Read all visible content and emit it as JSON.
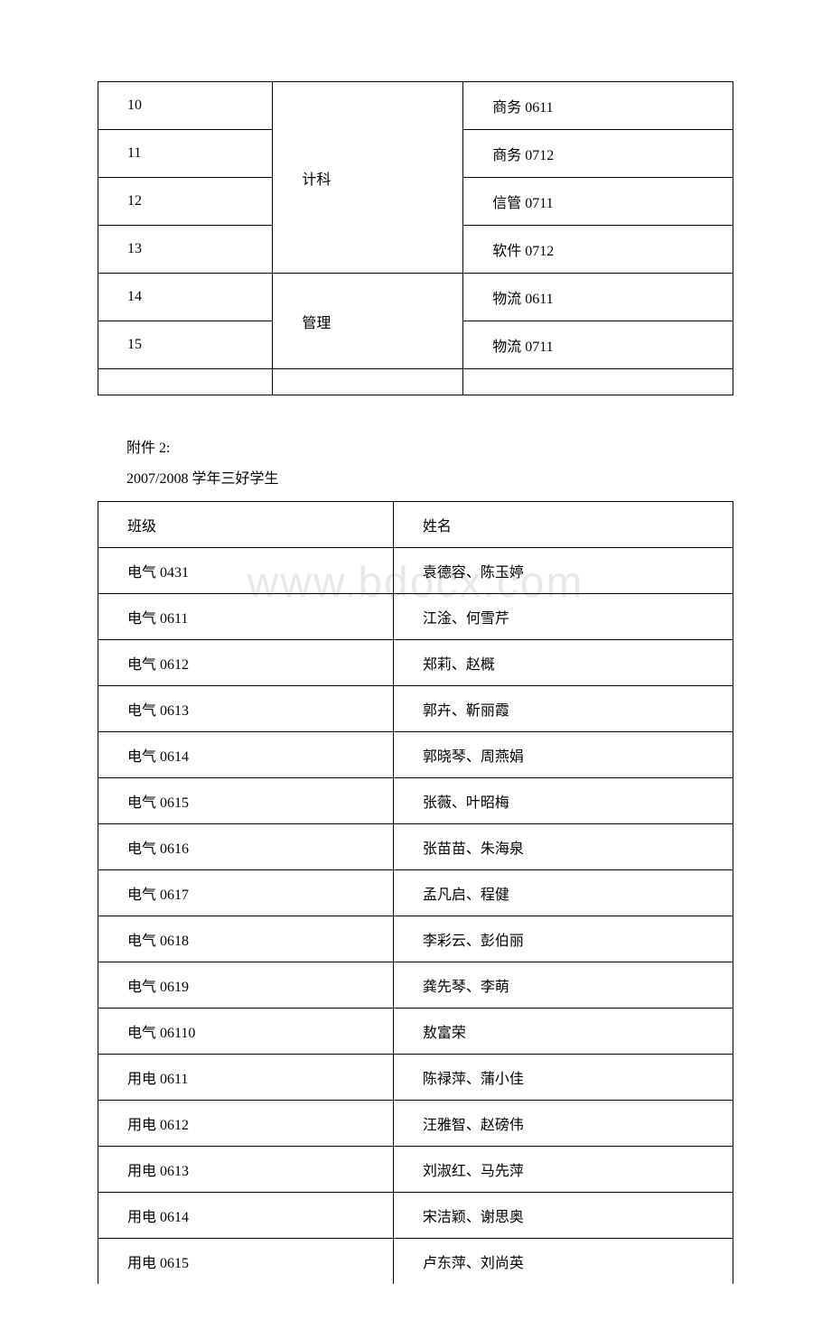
{
  "watermark": "www.bdocx.com",
  "table1": {
    "rows": [
      {
        "num": "10",
        "dept": "",
        "cls": "商务 0611"
      },
      {
        "num": "11",
        "dept": "计科",
        "cls": "商务 0712"
      },
      {
        "num": "12",
        "dept": "",
        "cls": "信管 0711"
      },
      {
        "num": "13",
        "dept": "",
        "cls": "软件 0712"
      },
      {
        "num": "14",
        "dept": "管理",
        "cls": "物流 0611"
      },
      {
        "num": "15",
        "dept": "",
        "cls": "物流 0711"
      },
      {
        "num": "",
        "dept": "",
        "cls": ""
      }
    ],
    "dept_jike": "计科",
    "dept_guanli": "管理"
  },
  "intertext": {
    "line1": "附件 2:",
    "line2": "2007/2008 学年三好学生"
  },
  "table2": {
    "header": {
      "cls": "班级",
      "name": "姓名"
    },
    "rows": [
      {
        "cls": "电气 0431",
        "name": "袁德容、陈玉婷"
      },
      {
        "cls": "电气 0611",
        "name": "江淦、何雪芹"
      },
      {
        "cls": "电气 0612",
        "name": "郑莉、赵概"
      },
      {
        "cls": "电气 0613",
        "name": "郭卉、靳丽霞"
      },
      {
        "cls": "电气 0614",
        "name": "郭晓琴、周燕娟"
      },
      {
        "cls": "电气 0615",
        "name": "张薇、叶昭梅"
      },
      {
        "cls": "电气 0616",
        "name": "张苗苗、朱海泉"
      },
      {
        "cls": "电气 0617",
        "name": "孟凡启、程健"
      },
      {
        "cls": "电气 0618",
        "name": "李彩云、彭伯丽"
      },
      {
        "cls": "电气 0619",
        "name": "龚先琴、李萌"
      },
      {
        "cls": "电气 06110",
        "name": "敖富荣"
      },
      {
        "cls": "用电 0611",
        "name": "陈禄萍、蒲小佳"
      },
      {
        "cls": "用电 0612",
        "name": "汪雅智、赵磅伟"
      },
      {
        "cls": "用电 0613",
        "name": "刘淑红、马先萍"
      },
      {
        "cls": "用电 0614",
        "name": "宋洁颖、谢思奥"
      },
      {
        "cls": "用电 0615",
        "name": "卢东萍、刘尚英"
      }
    ]
  }
}
